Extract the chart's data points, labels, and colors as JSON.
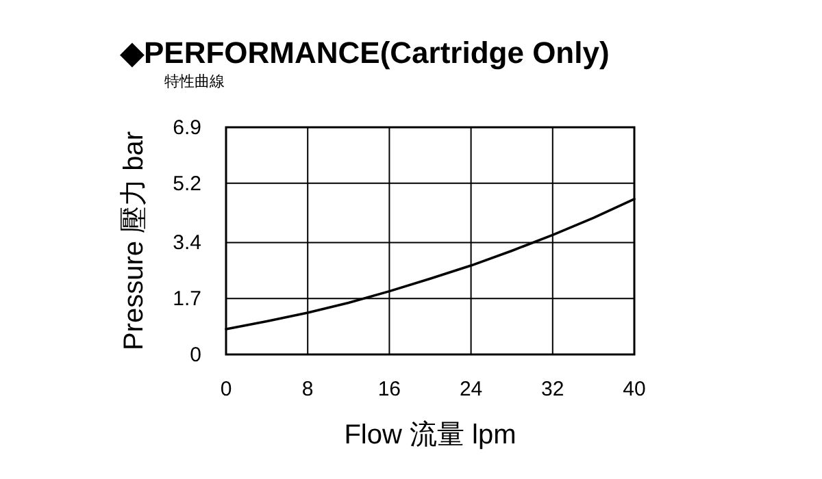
{
  "chart_data": {
    "type": "line",
    "title": "◆PERFORMANCE(Cartridge Only)",
    "subtitle": "特性曲線",
    "xlabel": "Flow 流量 lpm",
    "ylabel": "Pressure 壓力 bar",
    "x": [
      0,
      4,
      8,
      12,
      16,
      20,
      24,
      28,
      32,
      36,
      40
    ],
    "series": [
      {
        "color": "#000000",
        "values": [
          0.77,
          1.01,
          1.27,
          1.57,
          1.92,
          2.3,
          2.7,
          3.15,
          3.63,
          4.15,
          4.72
        ]
      }
    ],
    "xlim": [
      0,
      40
    ],
    "xticks": [
      0,
      8,
      16,
      24,
      32,
      40
    ],
    "ylim": [
      0,
      6.9
    ],
    "yticks": [
      0,
      1.7,
      3.4,
      5.2,
      6.9
    ],
    "grid": true,
    "marker": "none",
    "line_style": "solid"
  }
}
